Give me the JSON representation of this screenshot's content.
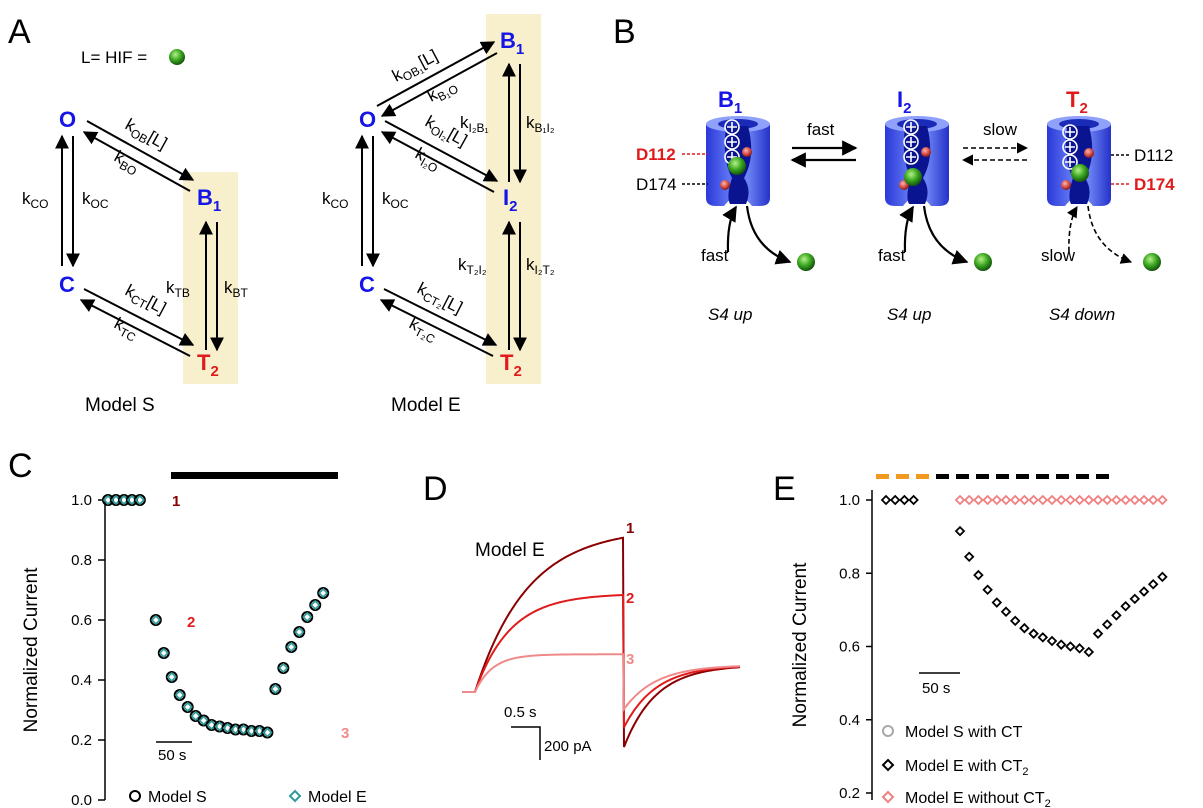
{
  "panels": {
    "a": "A",
    "b": "B",
    "c": "C",
    "d": "D",
    "e": "E"
  },
  "panel_a": {
    "ligand_label": "L= HIF =",
    "model_s": {
      "title": "Model S",
      "states": {
        "o": "O",
        "c": "C",
        "b": "B",
        "b_sub": "1",
        "t": "T",
        "t_sub": "2"
      },
      "rates": {
        "co": {
          "main": "k",
          "sub": "CO"
        },
        "oc": {
          "main": "k",
          "sub": "OC"
        },
        "ob": {
          "main": "k",
          "sub": "OB",
          "suffix": "[L]"
        },
        "bo": {
          "main": "k",
          "sub": "BO"
        },
        "tb": {
          "main": "k",
          "sub": "TB"
        },
        "bt": {
          "main": "k",
          "sub": "BT"
        },
        "ct": {
          "main": "k",
          "sub": "CT",
          "suffix": "[L]"
        },
        "tc": {
          "main": "k",
          "sub": "TC"
        }
      }
    },
    "model_e": {
      "title": "Model E",
      "states": {
        "o": "O",
        "c": "C",
        "b": "B",
        "b_sub": "1",
        "i": "I",
        "i_sub": "2",
        "t": "T",
        "t_sub": "2"
      },
      "rates": {
        "ob1": {
          "main": "k",
          "sub": "OB₁",
          "suffix": "[L]"
        },
        "b1o": {
          "main": "k",
          "sub": "B₁O"
        },
        "oi2": {
          "main": "k",
          "sub": "OI₂",
          "suffix": "[L]"
        },
        "i2o": {
          "main": "k",
          "sub": "I₂O"
        },
        "i2b1": {
          "main": "k",
          "sub": "I₂B₁"
        },
        "b1i2": {
          "main": "k",
          "sub": "B₁I₂"
        },
        "co": {
          "main": "k",
          "sub": "CO"
        },
        "oc": {
          "main": "k",
          "sub": "OC"
        },
        "t2i2": {
          "main": "k",
          "sub": "T₂I₂"
        },
        "i2t2": {
          "main": "k",
          "sub": "I₂T₂"
        },
        "ct2": {
          "main": "k",
          "sub": "CT₂",
          "suffix": "[L]"
        },
        "t2c": {
          "main": "k",
          "sub": "T₂C"
        }
      }
    }
  },
  "panel_b": {
    "states": [
      {
        "main": "B",
        "sub": "1",
        "color": "blue",
        "caption": "S4 up"
      },
      {
        "main": "I",
        "sub": "2",
        "color": "blue",
        "caption": "S4 up"
      },
      {
        "main": "T",
        "sub": "2",
        "color": "red",
        "caption": "S4 down"
      }
    ],
    "fast_label": "fast",
    "slow_label": "slow",
    "binding_fast": "fast",
    "binding_fast2": "fast",
    "binding_slow": "slow",
    "d112": "D112",
    "d174": "D174",
    "d112_right": "D112",
    "d174_right": "D174",
    "plus": "+"
  },
  "panel_c": {
    "chart_data": {
      "type": "scatter",
      "ylabel": "Normalized Current",
      "ylim": [
        0.0,
        1.0
      ],
      "yticks": [
        "0.0",
        "0.2",
        "0.4",
        "0.6",
        "0.8",
        "1.0"
      ],
      "scale_bar": "50 s",
      "x": [
        0,
        10,
        20,
        30,
        40,
        60,
        70,
        80,
        90,
        100,
        110,
        120,
        130,
        140,
        150,
        160,
        170,
        180,
        190,
        200,
        210,
        220,
        230,
        240,
        250,
        260,
        270
      ],
      "series": [
        {
          "name": "Model S",
          "values": [
            1.0,
            1.0,
            1.0,
            1.0,
            1.0,
            0.6,
            0.49,
            0.41,
            0.35,
            0.31,
            0.28,
            0.265,
            0.25,
            0.245,
            0.24,
            0.235,
            0.235,
            0.23,
            0.23,
            0.225,
            0.37,
            0.44,
            0.51,
            0.56,
            0.61,
            0.65,
            0.69
          ]
        },
        {
          "name": "Model E",
          "values": [
            1.0,
            1.0,
            1.0,
            1.0,
            1.0,
            0.6,
            0.49,
            0.41,
            0.35,
            0.31,
            0.28,
            0.265,
            0.25,
            0.245,
            0.24,
            0.235,
            0.235,
            0.23,
            0.23,
            0.225,
            0.37,
            0.44,
            0.51,
            0.56,
            0.61,
            0.65,
            0.69
          ]
        }
      ],
      "markers": [
        "1",
        "2",
        "3"
      ]
    }
  },
  "panel_d": {
    "chart_data": {
      "type": "line",
      "model_label": "Model E",
      "trace_labels": [
        "1",
        "2",
        "3"
      ],
      "time_scale": "0.5 s",
      "current_scale": "200 pA",
      "series": [
        {
          "name": "1",
          "color": "#8b0000",
          "plateau": 1.0
        },
        {
          "name": "2",
          "color": "#e01b1b",
          "plateau": 0.6
        },
        {
          "name": "3",
          "color": "#f08a8a",
          "plateau": 0.23
        }
      ]
    }
  },
  "panel_e": {
    "chart_data": {
      "type": "scatter",
      "ylabel": "Normalized Current",
      "ylim": [
        0.2,
        1.0
      ],
      "yticks": [
        "0.2",
        "0.4",
        "0.6",
        "0.8",
        "1.0"
      ],
      "scale_bar": "50 s",
      "legend": [
        "Model S with CT",
        "Model E with CT",
        "Model E without CT"
      ],
      "legend_sub": [
        "",
        "2",
        "2"
      ],
      "x_before": [
        0,
        10,
        20,
        30
      ],
      "before": [
        1.0,
        1.0,
        1.0,
        1.0
      ],
      "x_after": [
        50,
        60,
        70,
        80,
        90,
        100,
        110,
        120,
        130,
        140,
        150,
        160,
        170,
        180,
        190,
        200,
        210,
        220,
        230,
        240,
        250,
        260,
        270
      ],
      "with_ct2": [
        0.915,
        0.845,
        0.795,
        0.755,
        0.72,
        0.695,
        0.67,
        0.65,
        0.635,
        0.625,
        0.615,
        0.605,
        0.6,
        0.595,
        0.585,
        0.635,
        0.66,
        0.685,
        0.71,
        0.73,
        0.75,
        0.77,
        0.79
      ],
      "without_ct2": [
        1.0,
        1.0,
        1.0,
        1.0,
        1.0,
        1.0,
        1.0,
        1.0,
        1.0,
        1.0,
        1.0,
        1.0,
        1.0,
        1.0,
        1.0,
        1.0,
        1.0,
        1.0,
        1.0,
        1.0,
        1.0,
        1.0,
        1.0
      ]
    }
  },
  "colors": {
    "blue_state": "#1515e6",
    "red_state": "#e01b1b",
    "highlight": "#f8efcc",
    "teal": "#2f9a99",
    "salmon": "#f08080",
    "orange_bar": "#f29a1f",
    "ligand": "#2f9e1e"
  }
}
